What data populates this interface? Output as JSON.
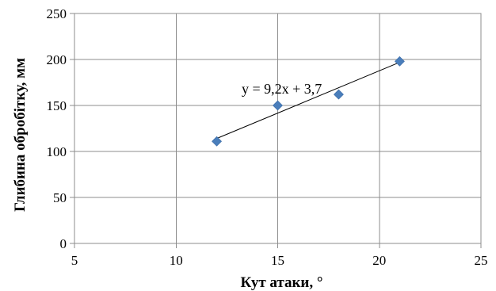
{
  "chart_data": {
    "type": "scatter",
    "title": "",
    "xlabel": "Кут атаки, °",
    "ylabel": "Глибина обробітку, мм",
    "xlim": [
      5,
      25
    ],
    "ylim": [
      0,
      250
    ],
    "xticks": [
      5,
      10,
      15,
      20,
      25
    ],
    "yticks": [
      0,
      50,
      100,
      150,
      200,
      250
    ],
    "grid": true,
    "legend": "none",
    "series": [
      {
        "x": [
          12,
          15,
          18,
          21
        ],
        "y": [
          111,
          150,
          162,
          198
        ],
        "marker": "diamond",
        "color": "#4a7ebb"
      }
    ],
    "trendline": {
      "type": "linear",
      "slope": 9.2,
      "intercept": 3.7,
      "x_range": [
        12,
        21
      ],
      "color": "#000000",
      "equation_label": "y = 9,2x + 3,7"
    }
  }
}
